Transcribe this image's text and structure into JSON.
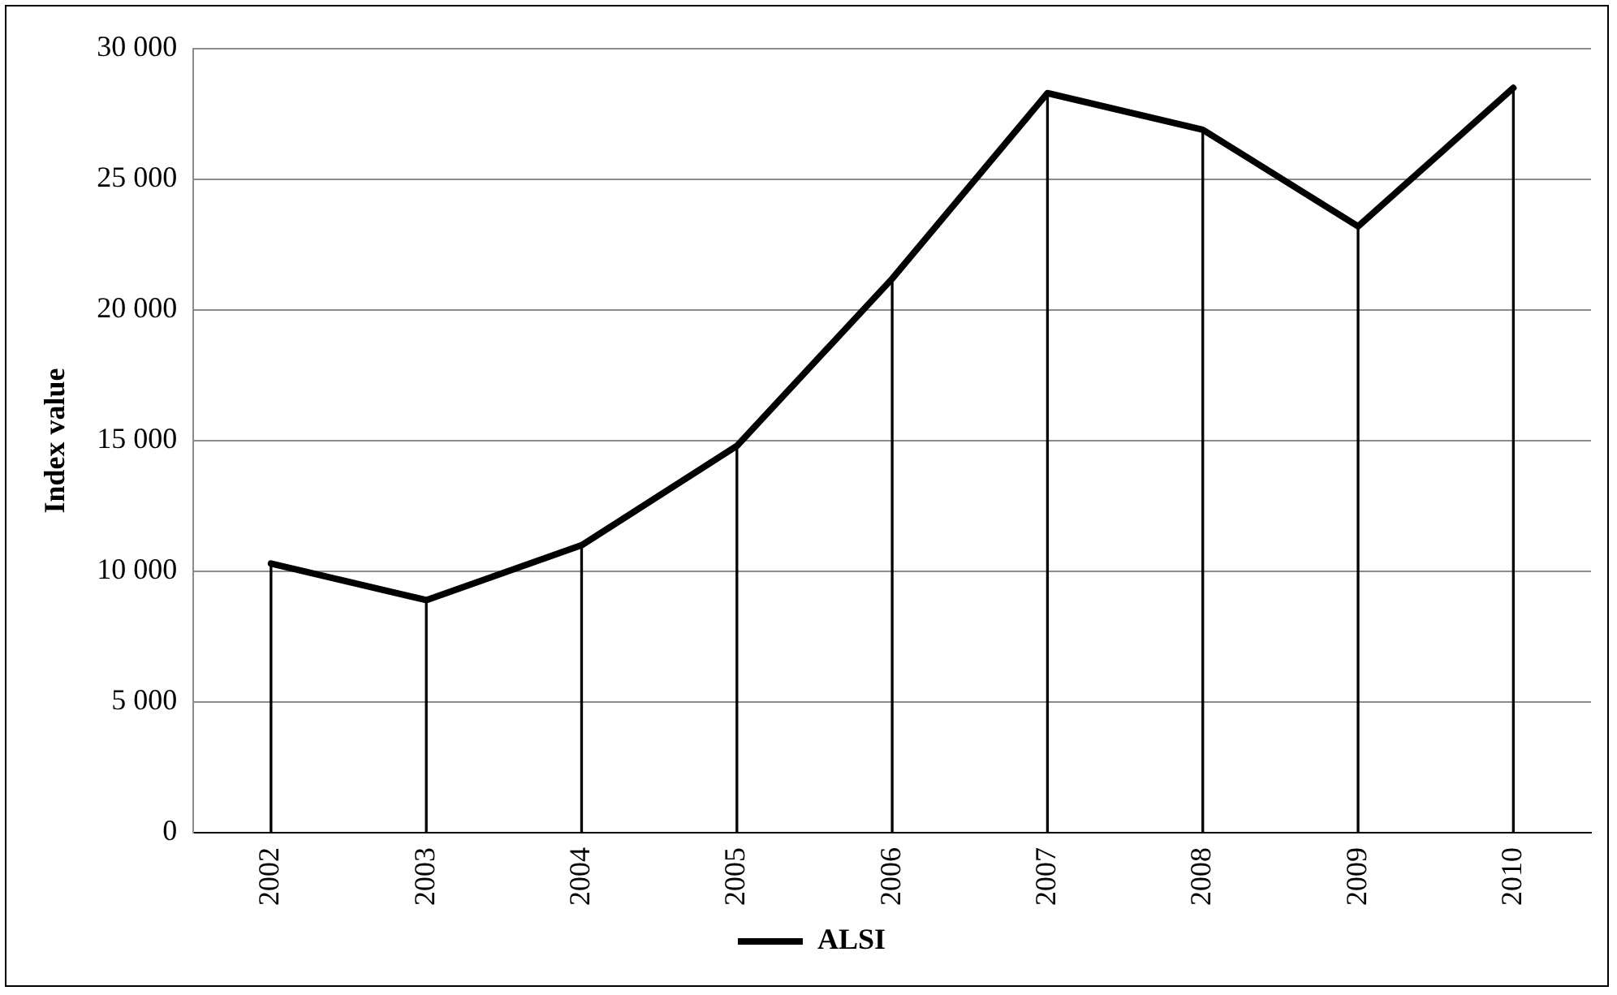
{
  "chart_data": {
    "type": "line",
    "ylabel": "Index value",
    "categories": [
      "2002",
      "2003",
      "2004",
      "2005",
      "2006",
      "2007",
      "2008",
      "2009",
      "2010"
    ],
    "series": [
      {
        "name": "ALSI",
        "color": "#000000",
        "values": [
          10300,
          8900,
          11000,
          14800,
          21200,
          28300,
          26900,
          23200,
          28500
        ]
      },
      {
        "type": "bar",
        "color": "#000000",
        "values": [
          10300,
          8900,
          11000,
          14800,
          21200,
          28300,
          26900,
          23200,
          28500
        ]
      }
    ],
    "ylim": [
      0,
      30000
    ],
    "yticks": [
      {
        "value": 0,
        "label": "0"
      },
      {
        "value": 5000,
        "label": "5 000"
      },
      {
        "value": 10000,
        "label": "10 000"
      },
      {
        "value": 15000,
        "label": "15 000"
      },
      {
        "value": 20000,
        "label": "20 000"
      },
      {
        "value": 25000,
        "label": "25 000"
      },
      {
        "value": 30000,
        "label": "30 000"
      }
    ],
    "grid": "y",
    "legend": "bottom",
    "marker": "none",
    "line_style": "solid"
  }
}
